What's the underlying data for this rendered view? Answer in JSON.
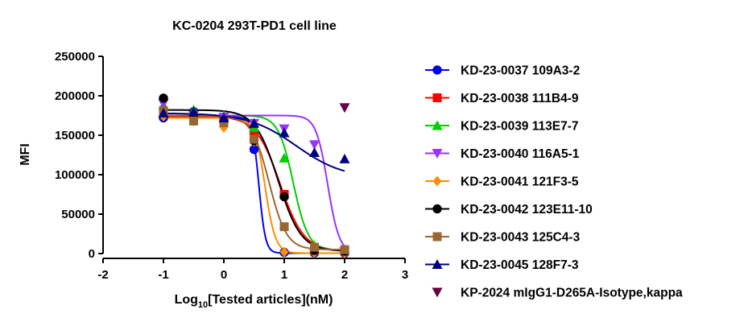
{
  "chart_data": {
    "type": "scatter",
    "title": "KC-0204 293T-PD1 cell line",
    "xlabel": {
      "prefix": "Log",
      "sub": "10",
      "suffix": "[Tested articles](nM)"
    },
    "ylabel": "MFI",
    "xlim": [
      -2,
      3
    ],
    "ylim": [
      0,
      250000
    ],
    "x_ticks": [
      "-2",
      "-1",
      "0",
      "1",
      "2",
      "3"
    ],
    "y_ticks": [
      "0",
      "50000",
      "100000",
      "150000",
      "200000",
      "250000"
    ],
    "grid": false,
    "legend_position": "right",
    "series": [
      {
        "name": "KD-23-0037 109A3-2",
        "color": "#0000FF",
        "marker": "circle",
        "x": [
          -1,
          -0.5,
          0,
          0.5,
          1,
          1.5,
          2
        ],
        "y": [
          172000,
          180000,
          170000,
          132000,
          1500,
          800,
          500
        ],
        "fit": {
          "top": 173000,
          "bottom": 500,
          "ec50_log": 0.58,
          "hill": 8
        }
      },
      {
        "name": "KD-23-0038 111B4-9",
        "color": "#FF0000",
        "marker": "square",
        "x": [
          -1,
          -0.5,
          0,
          0.5,
          1,
          1.5,
          2
        ],
        "y": [
          178000,
          174000,
          168000,
          150000,
          75000,
          5000,
          4000
        ],
        "fit": {
          "top": 174000,
          "bottom": 3000,
          "ec50_log": 0.93,
          "hill": 2.2
        }
      },
      {
        "name": "KD-23-0039 113E7-7",
        "color": "#00CC00",
        "marker": "triangle-up",
        "x": [
          -1,
          -0.5,
          0,
          0.5,
          1,
          1.5,
          2
        ],
        "y": [
          188000,
          182000,
          175000,
          160000,
          121000,
          10000,
          5000
        ],
        "fit": {
          "top": 175000,
          "bottom": 4000,
          "ec50_log": 1.15,
          "hill": 3.5
        }
      },
      {
        "name": "KD-23-0040 116A5-1",
        "color": "#9933FF",
        "marker": "triangle-down",
        "x": [
          -1,
          -0.5,
          0,
          0.5,
          1,
          1.5,
          2
        ],
        "y": [
          190000,
          175000,
          173000,
          165000,
          158000,
          138000,
          2000
        ],
        "fit": {
          "top": 175000,
          "bottom": 0,
          "ec50_log": 1.72,
          "hill": 4.5
        }
      },
      {
        "name": "KD-23-0041 121F3-5",
        "color": "#FF8C00",
        "marker": "diamond",
        "x": [
          -1,
          -0.5,
          0,
          0.5,
          1,
          1.5,
          2
        ],
        "y": [
          174000,
          168000,
          160000,
          142000,
          2000,
          1000,
          500
        ],
        "fit": {
          "top": 172000,
          "bottom": 500,
          "ec50_log": 0.68,
          "hill": 5
        }
      },
      {
        "name": "KD-23-0042 123E11-10",
        "color": "#000000",
        "marker": "circle",
        "x": [
          -1,
          -0.5,
          0,
          0.5,
          1,
          1.5,
          2
        ],
        "y": [
          197000,
          172000,
          169000,
          143000,
          72000,
          4000,
          3000
        ],
        "fit": {
          "top": 182000,
          "bottom": 3000,
          "ec50_log": 0.9,
          "hill": 2.3
        }
      },
      {
        "name": "KD-23-0043 125C4-3",
        "color": "#996633",
        "marker": "square",
        "x": [
          -1,
          -0.5,
          0,
          0.5,
          1,
          1.5,
          2
        ],
        "y": [
          181000,
          168000,
          166000,
          145000,
          34000,
          8000,
          5000
        ],
        "fit": {
          "top": 175000,
          "bottom": 5000,
          "ec50_log": 0.75,
          "hill": 3
        }
      },
      {
        "name": "KD-23-0045 128F7-3",
        "color": "#000080",
        "marker": "triangle-up",
        "x": [
          -1,
          -0.5,
          0,
          0.5,
          1,
          1.5,
          2
        ],
        "y": [
          178000,
          180000,
          172000,
          165000,
          153000,
          128000,
          120000
        ],
        "fit": {
          "top": 178000,
          "bottom": 95000,
          "ec50_log": 1.2,
          "hill": 1.1
        }
      },
      {
        "name": "KP-2024 mIgG1-D265A-Isotype,kappa",
        "color": "#660044",
        "marker": "triangle-down",
        "x": [
          2
        ],
        "y": [
          185000
        ],
        "fit": null
      }
    ]
  }
}
